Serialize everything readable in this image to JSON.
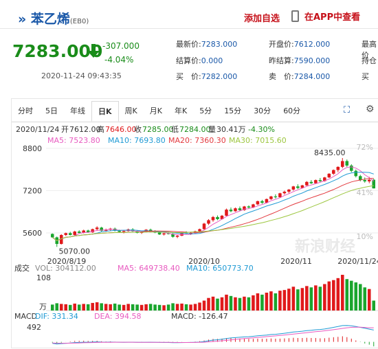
{
  "stock": {
    "name": "苯乙烯",
    "code": "(EB0)",
    "price": "7283.000",
    "change": "-307.000",
    "change_pct": "-4.04%",
    "datetime": "2020-11-24 09:43:35"
  },
  "actions": {
    "add_watchlist": "添加自选",
    "view_in_app": "在APP中查看"
  },
  "quote": [
    {
      "label": "最新价:",
      "value": "7283.000"
    },
    {
      "label": "开盘价:",
      "value": "7612.000"
    },
    {
      "label": "最高价",
      "value": ""
    },
    {
      "label": "结算价:",
      "value": "0.000"
    },
    {
      "label": "昨结算:",
      "value": "7590.000"
    },
    {
      "label": "持仓",
      "value": ""
    },
    {
      "label": "买　价:",
      "value": "7282.000"
    },
    {
      "label": "卖　价:",
      "value": "7284.000"
    },
    {
      "label": "买",
      "value": ""
    }
  ],
  "tabs": [
    "分时",
    "5日",
    "年线",
    "日K",
    "周K",
    "月K",
    "年K",
    "5分",
    "15分",
    "30分",
    "60分"
  ],
  "active_tab": "日K",
  "icons": {
    "expand": "expand-icon",
    "settings": "settings-icon"
  },
  "chart_info": {
    "date": "2020/11/24",
    "open_label": "开",
    "open": "7612.00",
    "high_label": "高",
    "high": "7646.00",
    "close_label": "收",
    "close": "7285.00",
    "low_label": "低",
    "low": "7284.00",
    "volume_label": "量",
    "volume": "30.41万",
    "change_pct": "-4.30%",
    "ma5": "MA5: 7523.80",
    "ma10": "MA10: 7693.80",
    "ma20": "MA20: 7360.30",
    "ma30": "MA30: 7015.60"
  },
  "vol_info": {
    "label": "成交",
    "vol": "VOL: 304112.00",
    "ma5": "MA5: 649738.40",
    "ma10": "MA10: 650773.70",
    "top": "108",
    "unit": "万"
  },
  "macd_info": {
    "label": "MACD",
    "dif": "DIF: 331.34",
    "dea": "DEA: 394.58",
    "macd": "MACD: -126.47",
    "top": "492"
  },
  "watermark": "新浪财经",
  "colors": {
    "up": "#e0191b",
    "down": "#1aa52d",
    "ma5": "#e85ac0",
    "ma10": "#1f9ad4",
    "ma20": "#e3393e",
    "ma30": "#9cc63e",
    "accent": "#1a58a8"
  },
  "chart_data": {
    "type": "candlestick",
    "y_ticks": [
      "8800",
      "7200",
      "5600"
    ],
    "pct_ticks": [
      "72%",
      "41%",
      "10%"
    ],
    "x_ticks": [
      "2020/8/19",
      "2020/10",
      "2020/11",
      "2020/11/24"
    ],
    "max_label": "8435.00",
    "min_label": "5070.00",
    "ylim": [
      5000,
      8800
    ],
    "candles": [
      [
        5560,
        5580,
        5420,
        5430
      ],
      [
        5430,
        5460,
        5070,
        5180
      ],
      [
        5180,
        5550,
        5160,
        5520
      ],
      [
        5520,
        5610,
        5480,
        5590
      ],
      [
        5590,
        5640,
        5500,
        5520
      ],
      [
        5520,
        5680,
        5500,
        5650
      ],
      [
        5650,
        5700,
        5580,
        5600
      ],
      [
        5600,
        5720,
        5580,
        5690
      ],
      [
        5690,
        5720,
        5600,
        5620
      ],
      [
        5620,
        5760,
        5600,
        5740
      ],
      [
        5740,
        5850,
        5690,
        5800
      ],
      [
        5800,
        5830,
        5650,
        5680
      ],
      [
        5680,
        5760,
        5640,
        5720
      ],
      [
        5720,
        5790,
        5680,
        5760
      ],
      [
        5760,
        5800,
        5650,
        5680
      ],
      [
        5680,
        5720,
        5600,
        5640
      ],
      [
        5640,
        5700,
        5580,
        5670
      ],
      [
        5670,
        5760,
        5650,
        5730
      ],
      [
        5730,
        5780,
        5640,
        5660
      ],
      [
        5660,
        5700,
        5580,
        5600
      ],
      [
        5600,
        5660,
        5560,
        5640
      ],
      [
        5640,
        5740,
        5620,
        5720
      ],
      [
        5720,
        5760,
        5620,
        5640
      ],
      [
        5640,
        5700,
        5590,
        5610
      ],
      [
        5610,
        5640,
        5520,
        5540
      ],
      [
        5540,
        5600,
        5500,
        5580
      ],
      [
        5580,
        5640,
        5540,
        5560
      ],
      [
        5560,
        5590,
        5420,
        5450
      ],
      [
        5450,
        5520,
        5400,
        5490
      ],
      [
        5490,
        5620,
        5480,
        5600
      ],
      [
        5600,
        5660,
        5560,
        5580
      ],
      [
        5580,
        5620,
        5520,
        5600
      ],
      [
        5600,
        5680,
        5580,
        5660
      ],
      [
        5660,
        5760,
        5640,
        5740
      ],
      [
        5740,
        5980,
        5720,
        5950
      ],
      [
        5950,
        6120,
        5900,
        6080
      ],
      [
        6080,
        6240,
        6020,
        6200
      ],
      [
        6200,
        6260,
        6080,
        6120
      ],
      [
        6120,
        6280,
        6100,
        6250
      ],
      [
        6250,
        6520,
        6230,
        6480
      ],
      [
        6480,
        6560,
        6380,
        6420
      ],
      [
        6420,
        6560,
        6400,
        6530
      ],
      [
        6530,
        6600,
        6420,
        6460
      ],
      [
        6460,
        6620,
        6440,
        6600
      ],
      [
        6600,
        6640,
        6520,
        6560
      ],
      [
        6560,
        6700,
        6540,
        6680
      ],
      [
        6680,
        6820,
        6650,
        6800
      ],
      [
        6800,
        6850,
        6700,
        6740
      ],
      [
        6740,
        6900,
        6720,
        6880
      ],
      [
        6880,
        7000,
        6850,
        6980
      ],
      [
        6980,
        7060,
        6900,
        6950
      ],
      [
        6950,
        7120,
        6930,
        7100
      ],
      [
        7100,
        7200,
        7050,
        7160
      ],
      [
        7160,
        7260,
        7100,
        7240
      ],
      [
        7240,
        7380,
        7200,
        7360
      ],
      [
        7360,
        7440,
        7260,
        7300
      ],
      [
        7300,
        7420,
        7280,
        7400
      ],
      [
        7400,
        7560,
        7380,
        7530
      ],
      [
        7530,
        7600,
        7450,
        7480
      ],
      [
        7480,
        7620,
        7460,
        7600
      ],
      [
        7600,
        7680,
        7520,
        7560
      ],
      [
        7560,
        7720,
        7540,
        7700
      ],
      [
        7700,
        7860,
        7680,
        7840
      ],
      [
        7840,
        8000,
        7800,
        7980
      ],
      [
        7980,
        8120,
        7900,
        8100
      ],
      [
        8100,
        8435,
        8050,
        8320
      ],
      [
        8320,
        8380,
        8100,
        8150
      ],
      [
        8150,
        8200,
        7900,
        7950
      ],
      [
        7950,
        8000,
        7700,
        7750
      ],
      [
        7750,
        7800,
        7550,
        7600
      ],
      [
        7600,
        7700,
        7500,
        7550
      ],
      [
        7550,
        7720,
        7480,
        7612
      ],
      [
        7612,
        7646,
        7284,
        7285
      ]
    ],
    "volume": {
      "ylim": [
        0,
        108
      ],
      "values": [
        18,
        22,
        20,
        19,
        17,
        21,
        18,
        20,
        19,
        23,
        25,
        22,
        20,
        19,
        21,
        18,
        17,
        20,
        19,
        18,
        17,
        19,
        20,
        18,
        17,
        16,
        18,
        22,
        20,
        21,
        19,
        18,
        20,
        24,
        30,
        38,
        42,
        36,
        40,
        48,
        44,
        40,
        38,
        42,
        40,
        46,
        52,
        48,
        54,
        58,
        52,
        60,
        62,
        66,
        72,
        64,
        68,
        74,
        70,
        76,
        72,
        80,
        88,
        92,
        98,
        108,
        95,
        90,
        85,
        80,
        70,
        65,
        30
      ]
    },
    "macd": {
      "ylim": [
        -200,
        492
      ],
      "dif": [
        -40,
        -60,
        -50,
        -40,
        -30,
        -20,
        -15,
        -10,
        -10,
        -5,
        0,
        -5,
        -8,
        -5,
        -8,
        -10,
        -12,
        -10,
        -10,
        -12,
        -14,
        -12,
        -10,
        -12,
        -15,
        -18,
        -18,
        -22,
        -24,
        -20,
        -18,
        -16,
        -12,
        -5,
        10,
        30,
        50,
        60,
        75,
        95,
        110,
        120,
        128,
        138,
        145,
        155,
        170,
        178,
        190,
        205,
        212,
        225,
        240,
        255,
        275,
        285,
        298,
        315,
        325,
        338,
        345,
        360,
        382,
        405,
        428,
        455,
        460,
        450,
        430,
        405,
        380,
        355,
        331
      ],
      "dea": [
        -30,
        -36,
        -39,
        -39,
        -37,
        -34,
        -30,
        -26,
        -23,
        -19,
        -15,
        -13,
        -12,
        -11,
        -10,
        -10,
        -10,
        -10,
        -10,
        -11,
        -11,
        -11,
        -11,
        -11,
        -12,
        -13,
        -14,
        -16,
        -17,
        -18,
        -18,
        -17,
        -16,
        -14,
        -9,
        -1,
        9,
        19,
        30,
        43,
        56,
        69,
        81,
        92,
        103,
        113,
        125,
        135,
        146,
        158,
        168,
        180,
        192,
        204,
        218,
        231,
        244,
        258,
        271,
        284,
        296,
        309,
        324,
        340,
        358,
        377,
        394,
        405,
        410,
        409,
        403,
        394,
        394
      ]
    }
  }
}
